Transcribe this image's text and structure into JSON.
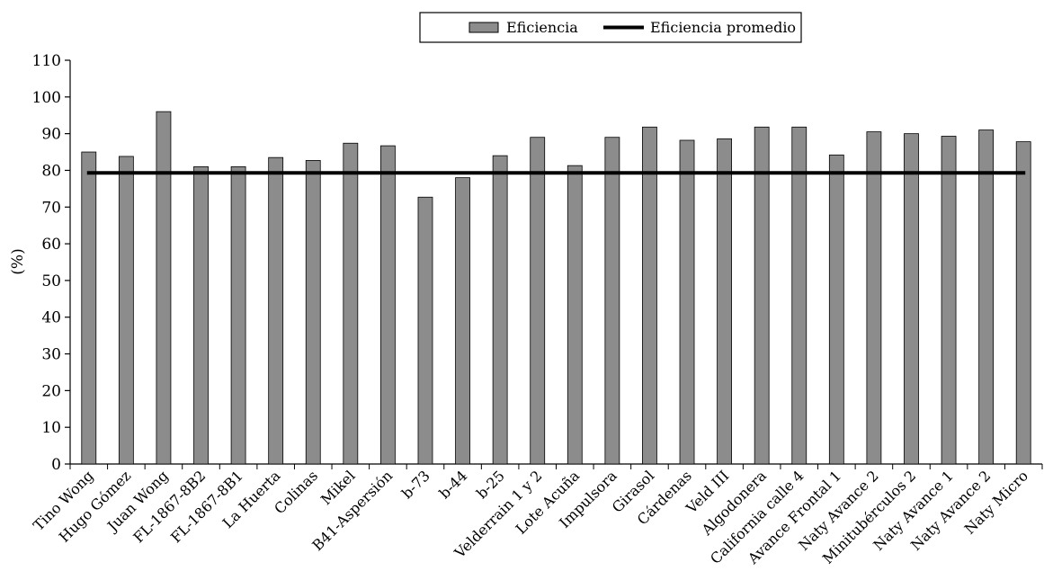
{
  "chart_data": {
    "type": "bar",
    "title": "",
    "xlabel": "",
    "ylabel": "(%)",
    "ylim": [
      0,
      110
    ],
    "yticks": [
      0,
      10,
      20,
      30,
      40,
      50,
      60,
      70,
      80,
      90,
      100,
      110
    ],
    "categories": [
      "Tino Wong",
      "Hugo Gómez",
      "Juan Wong",
      "FL-1867-8B2",
      "FL-1867-8B1",
      "La Huerta",
      "Colinas",
      "Mikel",
      "B41-Aspersión",
      "b-73",
      "b-44",
      "b-25",
      "Velderrain 1 y 2",
      "Lote Acuña",
      "Impulsora",
      "Girasol",
      "Cárdenas",
      "Veld III",
      "Algodonera",
      "California calle 4",
      "Avance Frontal 1",
      "Naty Avance 2",
      "Minitubérculos 2",
      "Naty Avance 1",
      "Naty Avance 2",
      "Naty Micro"
    ],
    "series": [
      {
        "name": "Eficiencia",
        "type": "bar",
        "color": "#8c8c8c",
        "values": [
          85,
          83.8,
          96,
          81,
          81,
          83.5,
          82.7,
          87.4,
          86.7,
          72.7,
          78,
          84,
          89,
          81.3,
          89,
          91.8,
          88.2,
          88.6,
          91.8,
          91.8,
          84.2,
          90.5,
          90,
          89.3,
          91,
          87.8
        ]
      },
      {
        "name": "Eficiencia promedio",
        "type": "line",
        "color": "#000000",
        "value": 79.3
      }
    ],
    "legend": "top-right",
    "grid": false
  }
}
